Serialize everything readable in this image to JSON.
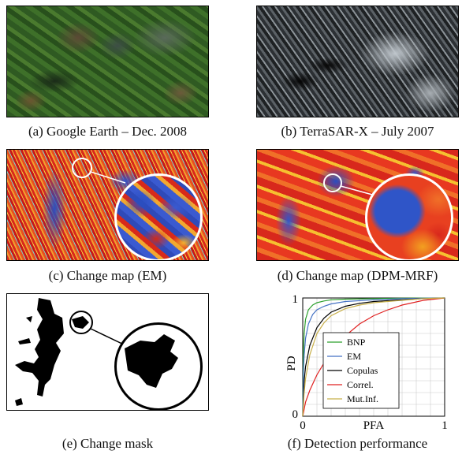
{
  "panels": {
    "a": {
      "caption": "(a) Google Earth – Dec. 2008"
    },
    "b": {
      "caption": "(b) TerraSAR-X – July 2007"
    },
    "c": {
      "caption": "(c) Change map (EM)"
    },
    "d": {
      "caption": "(d) Change map (DPM-MRF)"
    },
    "e": {
      "caption": "(e) Change mask"
    },
    "f": {
      "caption": "(f) Detection performance"
    }
  },
  "chart_data": {
    "type": "line",
    "title": "",
    "xlabel": "PFA",
    "ylabel": "PD",
    "xlim": [
      0,
      1
    ],
    "ylim": [
      0,
      1
    ],
    "x_ticks": [
      "0",
      "1"
    ],
    "y_ticks": [
      "0",
      "1"
    ],
    "grid": true,
    "legend_position": "bottom-right",
    "series": [
      {
        "name": "BNP",
        "color": "#2ca02c",
        "x": [
          0,
          0.005,
          0.01,
          0.02,
          0.04,
          0.07,
          0.1,
          0.15,
          0.2,
          0.3,
          0.5,
          0.7,
          1.0
        ],
        "y": [
          0,
          0.55,
          0.7,
          0.82,
          0.9,
          0.94,
          0.96,
          0.975,
          0.985,
          0.99,
          0.995,
          0.998,
          1.0
        ]
      },
      {
        "name": "EM",
        "color": "#4472c4",
        "x": [
          0,
          0.005,
          0.01,
          0.02,
          0.04,
          0.07,
          0.1,
          0.15,
          0.2,
          0.3,
          0.5,
          0.7,
          1.0
        ],
        "y": [
          0,
          0.38,
          0.52,
          0.66,
          0.78,
          0.86,
          0.9,
          0.93,
          0.95,
          0.97,
          0.985,
          0.995,
          1.0
        ]
      },
      {
        "name": "Copulas",
        "color": "#000000",
        "x": [
          0,
          0.01,
          0.02,
          0.05,
          0.1,
          0.15,
          0.2,
          0.3,
          0.4,
          0.5,
          0.7,
          0.85,
          1.0
        ],
        "y": [
          0,
          0.3,
          0.42,
          0.6,
          0.75,
          0.83,
          0.88,
          0.93,
          0.955,
          0.97,
          0.985,
          0.995,
          1.0
        ]
      },
      {
        "name": "Correl.",
        "color": "#e02020",
        "x": [
          0,
          0.02,
          0.05,
          0.1,
          0.15,
          0.2,
          0.3,
          0.4,
          0.5,
          0.6,
          0.7,
          0.85,
          1.0
        ],
        "y": [
          0,
          0.12,
          0.22,
          0.35,
          0.45,
          0.55,
          0.68,
          0.78,
          0.85,
          0.9,
          0.94,
          0.98,
          1.0
        ]
      },
      {
        "name": "Mut.Inf.",
        "color": "#c8b04a",
        "x": [
          0,
          0.01,
          0.02,
          0.05,
          0.1,
          0.15,
          0.2,
          0.3,
          0.4,
          0.5,
          0.7,
          0.85,
          1.0
        ],
        "y": [
          0,
          0.2,
          0.32,
          0.52,
          0.7,
          0.79,
          0.85,
          0.91,
          0.94,
          0.96,
          0.98,
          0.995,
          1.0
        ]
      }
    ]
  }
}
